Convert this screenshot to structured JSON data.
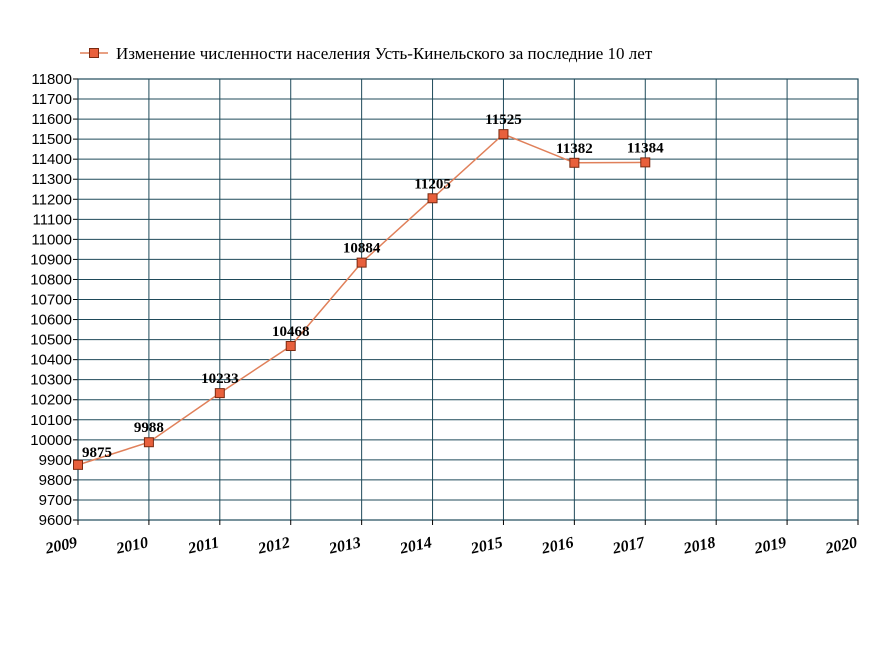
{
  "chart_data": {
    "type": "line",
    "legend": "Изменение численности населения Усть-Кинельского за последние 10 лет",
    "legend_position": "top",
    "x": [
      2009,
      2010,
      2011,
      2012,
      2013,
      2014,
      2015,
      2016,
      2017
    ],
    "series": [
      {
        "name": "Изменение численности населения Усть-Кинельского за последние 10 лет",
        "values": [
          9875,
          9988,
          10233,
          10468,
          10884,
          11205,
          11525,
          11382,
          11384
        ],
        "labels": [
          "9875",
          "9988",
          "10233",
          "10468",
          "10884",
          "11205",
          "11525",
          "11382",
          "11384"
        ]
      }
    ],
    "x_ticks": [
      "2009",
      "2010",
      "2011",
      "2012",
      "2013",
      "2014",
      "2015",
      "2016",
      "2017",
      "2018",
      "2019",
      "2020"
    ],
    "y_ticks": [
      "9600",
      "9700",
      "9800",
      "9900",
      "10000",
      "10100",
      "10200",
      "10300",
      "10400",
      "10500",
      "10600",
      "10700",
      "10800",
      "10900",
      "11000",
      "11100",
      "11200",
      "11300",
      "11400",
      "11500",
      "11600",
      "11700",
      "11800"
    ],
    "xlim": [
      2009,
      2020
    ],
    "ylim": [
      9600,
      11800
    ],
    "grid": true,
    "colors": {
      "grid": "#1f4a5a",
      "line": "#e0805a",
      "marker_fill": "#e8603c",
      "marker_stroke": "#7a2a10"
    }
  }
}
